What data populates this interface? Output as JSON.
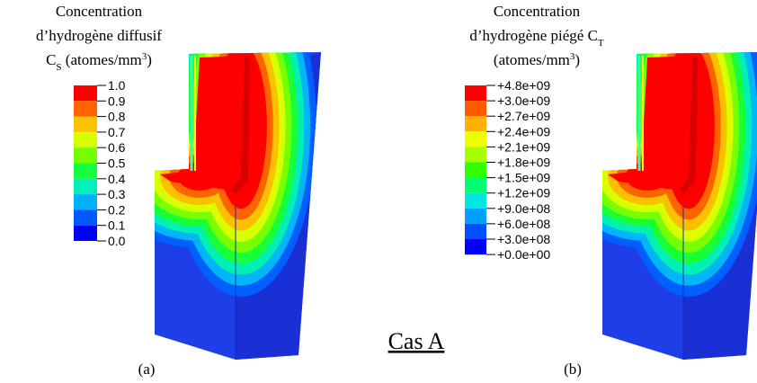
{
  "panels": [
    {
      "title": [
        [
          {
            "text": "Concentration"
          }
        ],
        [
          {
            "text": "d’hydrogène diffusif"
          }
        ],
        [
          {
            "text": "C"
          },
          {
            "text": "S",
            "style": "sub"
          },
          {
            "text": " (atomes/mm"
          },
          {
            "text": "3",
            "style": "sup"
          },
          {
            "text": ")"
          }
        ]
      ],
      "legend": [
        "1.0",
        "0.9",
        "0.8",
        "0.7",
        "0.6",
        "0.5",
        "0.4",
        "0.3",
        "0.2",
        "0.1",
        "0.0"
      ],
      "caption": "(a)"
    },
    {
      "title": [
        [
          {
            "text": "Concentration"
          }
        ],
        [
          {
            "text": "d’hydrogène piégé C"
          },
          {
            "text": "T",
            "style": "sub"
          }
        ],
        [
          {
            "text": "(atomes/mm"
          },
          {
            "text": "3",
            "style": "sup"
          },
          {
            "text": ")"
          }
        ]
      ],
      "legend": [
        "+4.8e+09",
        "+3.0e+09",
        "+2.7e+09",
        "+2.4e+09",
        "+2.1e+09",
        "+1.8e+09",
        "+1.5e+09",
        "+1.2e+09",
        "+9.0e+08",
        "+6.0e+08",
        "+3.0e+08",
        "+0.0e+00"
      ],
      "caption": "(b)"
    }
  ],
  "label": "Cas A"
}
